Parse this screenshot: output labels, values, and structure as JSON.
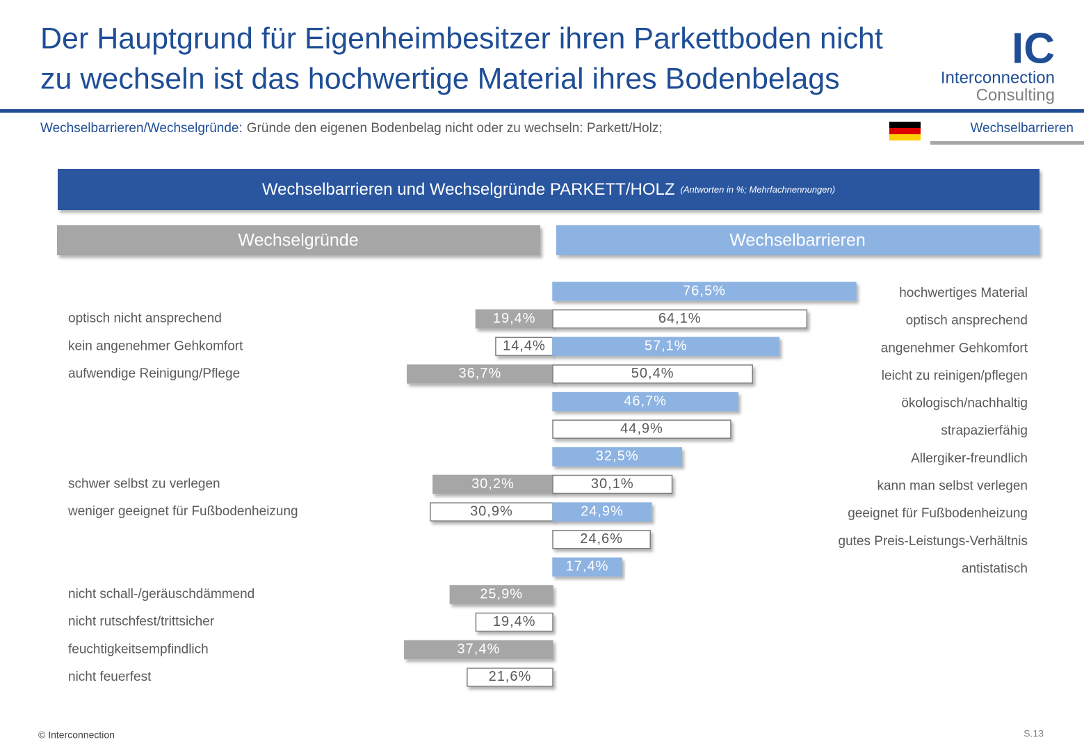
{
  "header": {
    "title": [
      "Der Hauptgrund für Eigenheimbesitzer ihren Parkettboden nicht",
      "zu wechseln ist das hochwertige Material ihres Bodenbelags"
    ],
    "logo": {
      "mark": "IC",
      "line1": "Interconnection",
      "line2": "Consulting"
    },
    "subtitle_label": "Wechselbarrieren/Wechselgründe:",
    "subtitle": "Gründe den eigenen Bodenbelag nicht oder zu wechseln: Parkett/Holz;",
    "tab": "Wechselbarrieren"
  },
  "chart_data": {
    "type": "butterfly-bar",
    "title": "Wechselbarrieren und Wechselgründe PARKETT/HOLZ",
    "subtitle": "(Antworten in %; Mehrfachnennungen)",
    "series": [
      {
        "name": "Wechselgründe",
        "side": "left",
        "colors": [
          "#ffffff",
          "#a6a6a6"
        ],
        "categories": [
          null,
          "optisch nicht ansprechend",
          "kein angenehmer Gehkomfort",
          "aufwendige Reinigung/Pflege",
          null,
          null,
          null,
          "schwer selbst zu verlegen",
          "weniger geeignet für Fußbodenheizung",
          null,
          null,
          "nicht schall-/geräuschdämmend",
          "nicht rutschfest/trittsicher",
          "feuchtigkeitsempfindlich",
          "nicht feuerfest"
        ],
        "values": [
          null,
          19.4,
          14.4,
          36.7,
          null,
          null,
          null,
          30.2,
          30.9,
          null,
          null,
          25.9,
          19.4,
          37.4,
          21.6
        ],
        "value_labels": [
          null,
          "19,4%",
          "14,4%",
          "36,7%",
          null,
          null,
          null,
          "30,2%",
          "30,9%",
          null,
          null,
          "25,9%",
          "19,4%",
          "37,4%",
          "21,6%"
        ]
      },
      {
        "name": "Wechselbarrieren",
        "side": "right",
        "colors": [
          "#8db3e2",
          "#ffffff"
        ],
        "categories": [
          "hochwertiges Material",
          "optisch ansprechend",
          "angenehmer Gehkomfort",
          "leicht zu reinigen/pflegen",
          "ökologisch/nachhaltig",
          "strapazierfähig",
          "Allergiker-freundlich",
          "kann man selbst verlegen",
          "geeignet für Fußbodenheizung",
          "gutes Preis-Leistungs-Verhältnis",
          "antistatisch",
          null,
          null,
          null,
          null
        ],
        "values": [
          76.5,
          64.1,
          57.1,
          50.4,
          46.7,
          44.9,
          32.5,
          30.1,
          24.9,
          24.6,
          17.4,
          null,
          null,
          null,
          null
        ],
        "value_labels": [
          "76,5%",
          "64,1%",
          "57,1%",
          "50,4%",
          "46,7%",
          "44,9%",
          "32,5%",
          "30,1%",
          "24,9%",
          "24,6%",
          "17,4%",
          null,
          null,
          null,
          null
        ]
      }
    ]
  },
  "footer": {
    "copyright": "© Interconnection",
    "page": "S.13"
  }
}
